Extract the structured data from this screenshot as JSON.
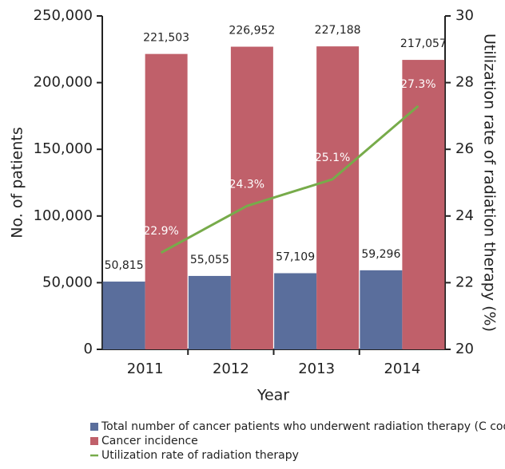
{
  "chart_data": {
    "type": "bar",
    "xlabel": "Year",
    "ylabel": "No. of patients",
    "y2label": "Utilization rate of radiation therapy (%)",
    "categories": [
      "2011",
      "2012",
      "2013",
      "2014"
    ],
    "series": [
      {
        "name": "Total number of cancer patients who underwent radiation therapy (C code)",
        "type": "bar",
        "color": "#5a6e9c",
        "values": [
          50815,
          55055,
          57109,
          59296
        ],
        "value_labels": [
          "50,815",
          "55,055",
          "57,109",
          "59,296"
        ]
      },
      {
        "name": "Cancer incidence",
        "type": "bar",
        "color": "#c0606a",
        "values": [
          221503,
          226952,
          227188,
          217057
        ],
        "value_labels": [
          "221,503",
          "226,952",
          "227,188",
          "217,057"
        ]
      },
      {
        "name": "Utilization rate of radiation therapy",
        "type": "line",
        "axis": "y2",
        "color": "#77ab4a",
        "values": [
          22.9,
          24.3,
          25.1,
          27.3
        ],
        "value_labels": [
          "22.9%",
          "24.3%",
          "25.1%",
          "27.3%"
        ]
      }
    ],
    "ylim": [
      0,
      250000
    ],
    "yticks": [
      0,
      {
        "value": 50000,
        "label": "50,000"
      },
      {
        "value": 100000,
        "label": "100,000"
      },
      {
        "value": 150000,
        "label": "150,000"
      },
      {
        "value": 200000,
        "label": "200,000"
      },
      {
        "value": 250000,
        "label": "250,000"
      }
    ],
    "y2lim": [
      20,
      30
    ],
    "y2ticks": [
      20,
      22,
      24,
      26,
      28,
      30
    ],
    "legend": "bottom"
  }
}
